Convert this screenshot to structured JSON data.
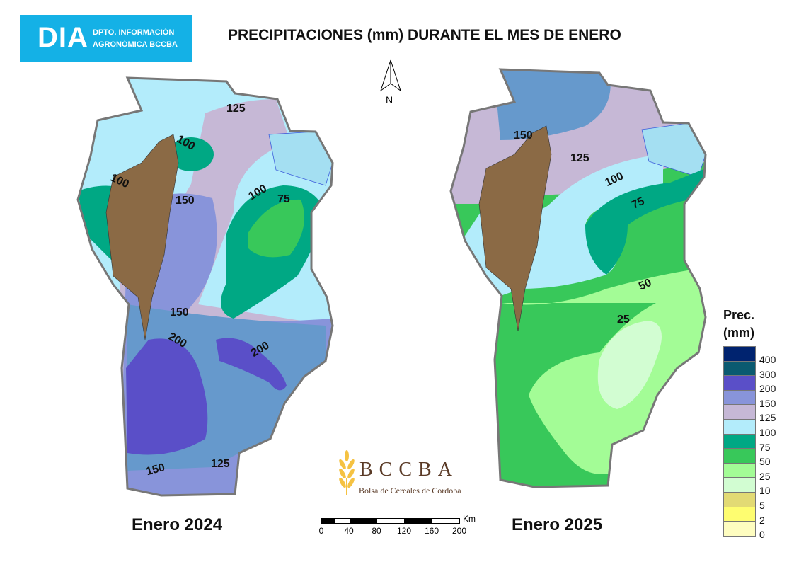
{
  "logo": {
    "acronym": "DIA",
    "line1": "DPTO. INFORMACIÓN",
    "line2": "AGRONÓMICA BCCBA"
  },
  "title": "PRECIPITACIONES (mm) DURANTE EL MES DE ENERO",
  "north": "N",
  "maps": [
    {
      "label": "Enero 2024",
      "contours": [
        "125",
        "100",
        "100",
        "150",
        "100",
        "75",
        "150",
        "200",
        "200",
        "150",
        "125"
      ]
    },
    {
      "label": "Enero 2025",
      "contours": [
        "150",
        "125",
        "100",
        "75",
        "50",
        "25"
      ]
    }
  ],
  "legend": {
    "title1": "Prec.",
    "title2": "(mm)",
    "classes": [
      {
        "value": "400",
        "color": "#00236f"
      },
      {
        "value": "300",
        "color": "#0a5a70"
      },
      {
        "value": "200",
        "color": "#5a4fc8"
      },
      {
        "value": "150",
        "color": "#8894da"
      },
      {
        "value": "125",
        "color": "#c6b8d6"
      },
      {
        "value": "100",
        "color": "#b3ecfb"
      },
      {
        "value": "75",
        "color": "#00a884"
      },
      {
        "value": "50",
        "color": "#38c85a"
      },
      {
        "value": "25",
        "color": "#a3fc96"
      },
      {
        "value": "10",
        "color": "#d2fdd2"
      },
      {
        "value": "5",
        "color": "#e2da74"
      },
      {
        "value": "2",
        "color": "#fefd70"
      },
      {
        "value": "0",
        "color": "#fefdc0"
      }
    ]
  },
  "brand": {
    "name": "BCCBA",
    "tagline": "Bolsa de Cereales de Cordoba"
  },
  "scale": {
    "unit": "Km",
    "ticks": [
      "0",
      "40",
      "80",
      "120",
      "160",
      "200"
    ]
  }
}
